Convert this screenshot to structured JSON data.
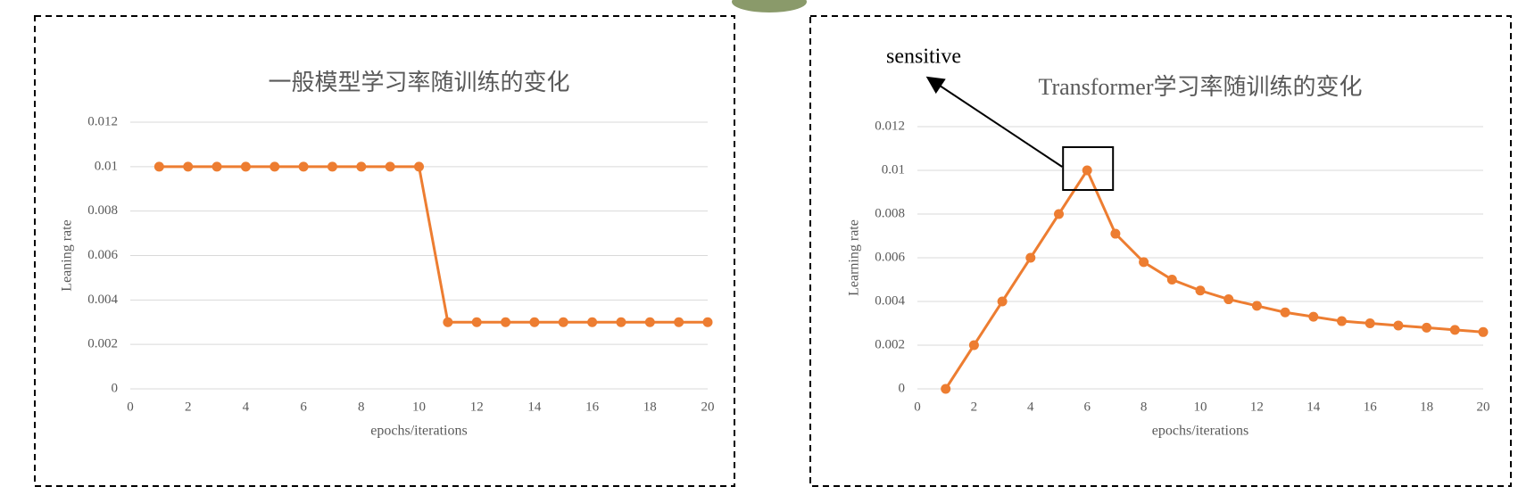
{
  "chart_data": [
    {
      "type": "line",
      "title": "一般模型学习率随训练的变化",
      "x_label": "epochs/iterations",
      "y_label": "Leaning rate",
      "x": [
        1,
        2,
        3,
        4,
        5,
        6,
        7,
        8,
        9,
        10,
        11,
        12,
        13,
        14,
        15,
        16,
        17,
        18,
        19,
        20
      ],
      "series": [
        {
          "color": "#ed7d31",
          "values": [
            0.01,
            0.01,
            0.01,
            0.01,
            0.01,
            0.01,
            0.01,
            0.01,
            0.01,
            0.01,
            0.003,
            0.003,
            0.003,
            0.003,
            0.003,
            0.003,
            0.003,
            0.003,
            0.003,
            0.003
          ]
        }
      ],
      "xlim": [
        0,
        20
      ],
      "xticks": [
        0,
        2,
        4,
        6,
        8,
        10,
        12,
        14,
        16,
        18,
        20
      ],
      "ylim": [
        0,
        0.012
      ],
      "yticks": [
        0,
        0.002,
        0.004,
        0.006,
        0.008,
        0.01,
        0.012
      ],
      "grid": true
    },
    {
      "type": "line",
      "title": "Transformer学习率随训练的变化",
      "x_label": "epochs/iterations",
      "y_label": "Learning rate",
      "annotation": "sensitive",
      "x": [
        1,
        2,
        3,
        4,
        5,
        6,
        7,
        8,
        9,
        10,
        11,
        12,
        13,
        14,
        15,
        16,
        17,
        18,
        19,
        20
      ],
      "series": [
        {
          "color": "#ed7d31",
          "values": [
            0,
            0.002,
            0.004,
            0.006,
            0.008,
            0.01,
            0.0071,
            0.0058,
            0.005,
            0.0045,
            0.0041,
            0.0038,
            0.0035,
            0.0033,
            0.0031,
            0.003,
            0.0029,
            0.0028,
            0.0027,
            0.0026
          ]
        }
      ],
      "xlim": [
        0,
        20
      ],
      "xticks": [
        0,
        2,
        4,
        6,
        8,
        10,
        12,
        14,
        16,
        18,
        20
      ],
      "ylim": [
        0,
        0.012
      ],
      "yticks": [
        0,
        0.002,
        0.004,
        0.006,
        0.008,
        0.01,
        0.012
      ],
      "grid": true
    }
  ]
}
